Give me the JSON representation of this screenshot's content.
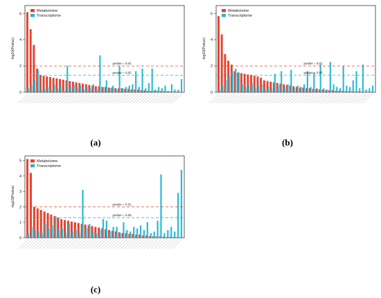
{
  "chart_data": [
    {
      "id": "a",
      "type": "bar",
      "panel_label": "(a)",
      "ylabel": "-log10(Pvalue)",
      "ylim": [
        0,
        6.6
      ],
      "yticks": [
        0,
        2,
        4,
        6
      ],
      "legend": {
        "position": "top-left",
        "entries": [
          "Metabolome",
          "Transcriptome"
        ]
      },
      "series": [
        {
          "name": "Metabolome",
          "color": "#e8412c",
          "values": [
            6.1,
            4.8,
            3.6,
            1.8,
            1.3,
            1.25,
            1.2,
            1.15,
            1.1,
            1.05,
            1.0,
            0.95,
            0.9,
            0.85,
            0.8,
            0.75,
            0.7,
            0.65,
            0.6,
            0.55,
            0.5,
            0.45,
            0.45,
            0.4,
            0.4,
            0.35,
            0.35,
            0.3,
            0.3,
            0.3,
            0.25,
            0.25,
            0.2,
            0.2,
            0.2,
            0.15,
            0.15,
            0.1,
            0.1,
            0.1,
            0.1,
            0.08,
            0.08,
            0.06,
            0.05,
            0.05,
            0.04,
            0.04
          ]
        },
        {
          "name": "Transcriptome",
          "color": "#1fb8d6",
          "values": [
            0.3,
            0.5,
            0.9,
            1.7,
            0.2,
            0.3,
            0.4,
            0.2,
            0.6,
            0.3,
            0.5,
            0.1,
            2.0,
            0.4,
            0.6,
            0.3,
            0.5,
            0.2,
            0.4,
            0.3,
            0.6,
            0.2,
            2.8,
            0.4,
            0.9,
            0.3,
            0.5,
            0.2,
            2.0,
            0.3,
            0.4,
            0.5,
            0.6,
            1.6,
            0.4,
            1.8,
            0.3,
            0.7,
            1.8,
            0.2,
            0.4,
            0.3,
            0.5,
            0.1,
            0.6,
            0.2,
            0.2,
            1.0
          ]
        }
      ],
      "hlines": [
        {
          "label": "pvalue = 0.01",
          "y": 2.0,
          "color": "#e8412c"
        },
        {
          "label": "pvalue = 0.05",
          "y": 1.3,
          "color": "#1fb8d6"
        }
      ]
    },
    {
      "id": "b",
      "type": "bar",
      "panel_label": "(b)",
      "ylabel": "-log10(Pvalue)",
      "ylim": [
        0,
        6.6
      ],
      "yticks": [
        0,
        2,
        4,
        6
      ],
      "legend": {
        "position": "top-left",
        "entries": [
          "Metabolome",
          "Transcriptome"
        ]
      },
      "series": [
        {
          "name": "Metabolome",
          "color": "#e8412c",
          "values": [
            5.8,
            4.4,
            2.9,
            2.4,
            2.1,
            1.6,
            1.5,
            1.45,
            1.4,
            1.35,
            1.3,
            1.25,
            1.2,
            1.1,
            0.9,
            0.85,
            0.8,
            0.75,
            0.7,
            0.65,
            0.6,
            0.55,
            0.5,
            0.45,
            0.4,
            0.35,
            0.35,
            0.3,
            0.3,
            0.25,
            0.25,
            0.2,
            0.2,
            0.15,
            0.15,
            0.15,
            0.1,
            0.1,
            0.1,
            0.08,
            0.08,
            0.06,
            0.05,
            0.05,
            0.04,
            0.04,
            0.03,
            0.03
          ]
        },
        {
          "name": "Transcriptome",
          "color": "#1fb8d6",
          "values": [
            0.2,
            0.5,
            0.9,
            1.3,
            1.6,
            1.8,
            1.5,
            0.6,
            0.4,
            0.5,
            0.7,
            0.3,
            0.5,
            0.6,
            0.2,
            0.4,
            0.3,
            1.4,
            0.5,
            1.6,
            0.4,
            0.6,
            1.7,
            0.3,
            0.5,
            0.4,
            0.6,
            1.6,
            0.4,
            1.5,
            0.3,
            2.1,
            0.3,
            0.2,
            2.3,
            0.6,
            0.4,
            0.3,
            2.0,
            0.5,
            0.4,
            0.9,
            1.6,
            0.3,
            2.1,
            0.2,
            0.3,
            0.5
          ]
        }
      ],
      "hlines": [
        {
          "label": "pvalue = 0.01",
          "y": 2.0,
          "color": "#e8412c"
        },
        {
          "label": "pvalue = 0.05",
          "y": 1.3,
          "color": "#1fb8d6"
        }
      ]
    },
    {
      "id": "c",
      "type": "bar",
      "panel_label": "(c)",
      "ylabel": "-log10(Pvalue)",
      "ylim": [
        0,
        5.3
      ],
      "yticks": [
        0,
        1,
        2,
        3,
        4,
        5
      ],
      "legend": {
        "position": "top-left",
        "entries": [
          "Metabolome",
          "Transcriptome"
        ]
      },
      "series": [
        {
          "name": "Metabolome",
          "color": "#e8412c",
          "values": [
            5.1,
            4.2,
            2.0,
            1.9,
            1.8,
            1.7,
            1.6,
            1.5,
            1.4,
            1.3,
            1.2,
            1.15,
            1.1,
            1.05,
            1.0,
            0.95,
            0.9,
            0.85,
            0.8,
            0.75,
            0.7,
            0.65,
            0.6,
            0.55,
            0.5,
            0.45,
            0.4,
            0.35,
            0.3,
            0.3,
            0.25,
            0.25,
            0.2,
            0.2,
            0.15,
            0.15,
            0.1,
            0.1,
            0.08,
            0.08,
            0.06,
            0.05,
            0.05,
            0.04,
            0.04,
            0.03
          ]
        },
        {
          "name": "Transcriptome",
          "color": "#1fb8d6",
          "values": [
            0.3,
            0.7,
            0.5,
            0.4,
            0.3,
            0.9,
            0.6,
            0.8,
            1.4,
            0.5,
            0.6,
            0.3,
            0.9,
            0.4,
            0.5,
            0.3,
            3.1,
            0.6,
            0.9,
            0.4,
            0.3,
            0.5,
            1.2,
            1.1,
            0.4,
            0.7,
            0.7,
            0.3,
            1.0,
            0.5,
            0.4,
            0.7,
            0.6,
            0.8,
            0.5,
            1.0,
            0.3,
            0.4,
            1.1,
            4.1,
            0.3,
            0.5,
            0.7,
            0.4,
            2.9,
            4.4
          ]
        }
      ],
      "hlines": [
        {
          "label": "pvalue = 0.01",
          "y": 2.0,
          "color": "#e8412c"
        },
        {
          "label": "pvalue = 0.05",
          "y": 1.3,
          "color": "#1fb8d6"
        }
      ]
    }
  ]
}
